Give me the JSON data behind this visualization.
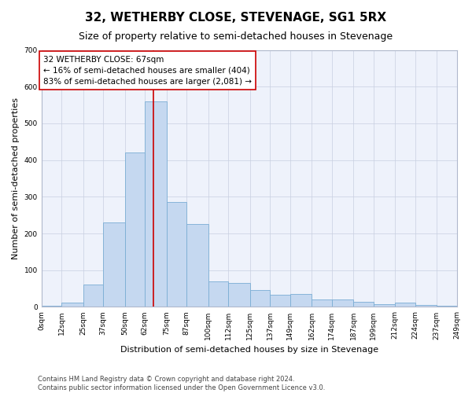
{
  "title": "32, WETHERBY CLOSE, STEVENAGE, SG1 5RX",
  "subtitle": "Size of property relative to semi-detached houses in Stevenage",
  "xlabel": "Distribution of semi-detached houses by size in Stevenage",
  "ylabel": "Number of semi-detached properties",
  "annotation_line1": "32 WETHERBY CLOSE: 67sqm",
  "annotation_line2": "← 16% of semi-detached houses are smaller (404)",
  "annotation_line3": "83% of semi-detached houses are larger (2,081) →",
  "footer_line1": "Contains HM Land Registry data © Crown copyright and database right 2024.",
  "footer_line2": "Contains public sector information licensed under the Open Government Licence v3.0.",
  "property_size": 67,
  "bin_edges": [
    0,
    12,
    25,
    37,
    50,
    62,
    75,
    87,
    100,
    112,
    125,
    137,
    149,
    162,
    174,
    187,
    199,
    212,
    224,
    237,
    249
  ],
  "bar_heights": [
    2,
    12,
    60,
    230,
    420,
    560,
    285,
    225,
    70,
    65,
    45,
    33,
    35,
    20,
    20,
    13,
    8,
    12,
    5,
    2
  ],
  "bar_color": "#c5d8f0",
  "bar_edge_color": "#7aadd4",
  "vline_color": "#cc0000",
  "vline_x": 67,
  "ylim": [
    0,
    700
  ],
  "yticks": [
    0,
    100,
    200,
    300,
    400,
    500,
    600,
    700
  ],
  "background_color": "#eef2fb",
  "grid_color": "#c8cfe0",
  "title_fontsize": 11,
  "subtitle_fontsize": 9,
  "axis_label_fontsize": 8,
  "tick_label_fontsize": 6.5,
  "annotation_fontsize": 7.5,
  "footer_fontsize": 6
}
